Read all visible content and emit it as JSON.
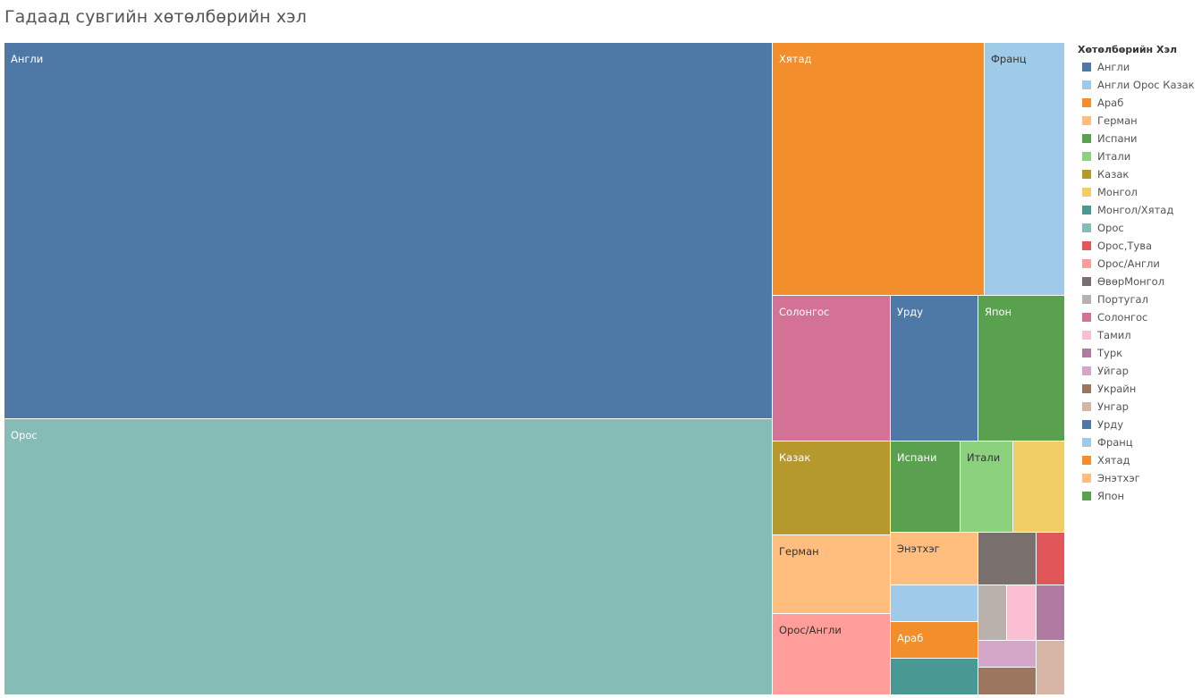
{
  "chart_data": {
    "type": "treemap",
    "title": "Гадаад сувгийн хөтөлбөрийн хэл",
    "legend_title": "Хөтөлбөрийн Хэл",
    "legend_position": "right",
    "show_grid": false,
    "items": [
      {
        "name": "Англи",
        "value": 36.2,
        "color": "#4e79a7",
        "label": "Англи"
      },
      {
        "name": "Орос",
        "value": 26.3,
        "color": "#86bcb6",
        "label": "Орос"
      },
      {
        "name": "Хятад",
        "value": 6.7,
        "color": "#f28e2b",
        "label": "Хятад"
      },
      {
        "name": "Франц",
        "value": 2.6,
        "color": "#a0cbe8",
        "label": "Франц"
      },
      {
        "name": "Солонгос",
        "value": 2.1,
        "color": "#d37295",
        "label": "Солонгос"
      },
      {
        "name": "Урду",
        "value": 1.5,
        "color": "#4e79a7",
        "label": "Урду"
      },
      {
        "name": "Япон",
        "value": 1.6,
        "color": "#59a14f",
        "label": "Япон"
      },
      {
        "name": "Казак",
        "value": 1.4,
        "color": "#b6992d",
        "label": "Казак"
      },
      {
        "name": "Испани",
        "value": 0.8,
        "color": "#59a14f",
        "label": "Испани"
      },
      {
        "name": "Итали",
        "value": 0.6,
        "color": "#8cd17d",
        "label": "Итали"
      },
      {
        "name": "Монгол",
        "value": 0.6,
        "color": "#f1ce63",
        "label": ""
      },
      {
        "name": "Герман",
        "value": 1.2,
        "color": "#ffbe7d",
        "label": "Герман"
      },
      {
        "name": "Орос/Англи",
        "value": 1.2,
        "color": "#ff9d9a",
        "label": "Орос/Англи"
      },
      {
        "name": "Энэтхэг",
        "value": 0.6,
        "color": "#ffbe7d",
        "label": "Энэтхэг"
      },
      {
        "name": "Англи Орос Казак",
        "value": 0.4,
        "color": "#a0cbe8",
        "label": ""
      },
      {
        "name": "Араб",
        "value": 0.4,
        "color": "#f28e2b",
        "label": "Араб"
      },
      {
        "name": "Монгол/Хятад",
        "value": 0.4,
        "color": "#499894",
        "label": ""
      },
      {
        "name": "ӨвөрМонгол",
        "value": 0.35,
        "color": "#79706e",
        "label": ""
      },
      {
        "name": "Орос,Тува",
        "value": 0.17,
        "color": "#e15759",
        "label": ""
      },
      {
        "name": "Португал",
        "value": 0.18,
        "color": "#bab0ac",
        "label": ""
      },
      {
        "name": "Тамил",
        "value": 0.18,
        "color": "#fabfd2",
        "label": ""
      },
      {
        "name": "Турк",
        "value": 0.17,
        "color": "#b07aa1",
        "label": ""
      },
      {
        "name": "Уйгар",
        "value": 0.18,
        "color": "#d4a6c8",
        "label": ""
      },
      {
        "name": "Украйн",
        "value": 0.18,
        "color": "#9d7660",
        "label": ""
      },
      {
        "name": "Унгар",
        "value": 0.17,
        "color": "#d7b5a6",
        "label": ""
      }
    ],
    "legend": [
      {
        "label": "Англи",
        "color": "#4e79a7"
      },
      {
        "label": "Англи Орос Казак",
        "color": "#a0cbe8"
      },
      {
        "label": "Араб",
        "color": "#f28e2b"
      },
      {
        "label": "Герман",
        "color": "#ffbe7d"
      },
      {
        "label": "Испани",
        "color": "#59a14f"
      },
      {
        "label": "Итали",
        "color": "#8cd17d"
      },
      {
        "label": "Казак",
        "color": "#b6992d"
      },
      {
        "label": "Монгол",
        "color": "#f1ce63"
      },
      {
        "label": "Монгол/Хятад",
        "color": "#499894"
      },
      {
        "label": "Орос",
        "color": "#86bcb6"
      },
      {
        "label": "Орос,Тува",
        "color": "#e15759"
      },
      {
        "label": "Орос/Англи",
        "color": "#ff9d9a"
      },
      {
        "label": "ӨвөрМонгол",
        "color": "#79706e"
      },
      {
        "label": "Португал",
        "color": "#bab0ac"
      },
      {
        "label": "Солонгос",
        "color": "#d37295"
      },
      {
        "label": "Тамил",
        "color": "#fabfd2"
      },
      {
        "label": "Турк",
        "color": "#b07aa1"
      },
      {
        "label": "Уйгар",
        "color": "#d4a6c8"
      },
      {
        "label": "Украйн",
        "color": "#9d7660"
      },
      {
        "label": "Унгар",
        "color": "#d7b5a6"
      },
      {
        "label": "Урду",
        "color": "#4e79a7"
      },
      {
        "label": "Франц",
        "color": "#a0cbe8"
      },
      {
        "label": "Хятад",
        "color": "#f28e2b"
      },
      {
        "label": "Энэтхэг",
        "color": "#ffbe7d"
      },
      {
        "label": "Япон",
        "color": "#59a14f"
      }
    ]
  }
}
